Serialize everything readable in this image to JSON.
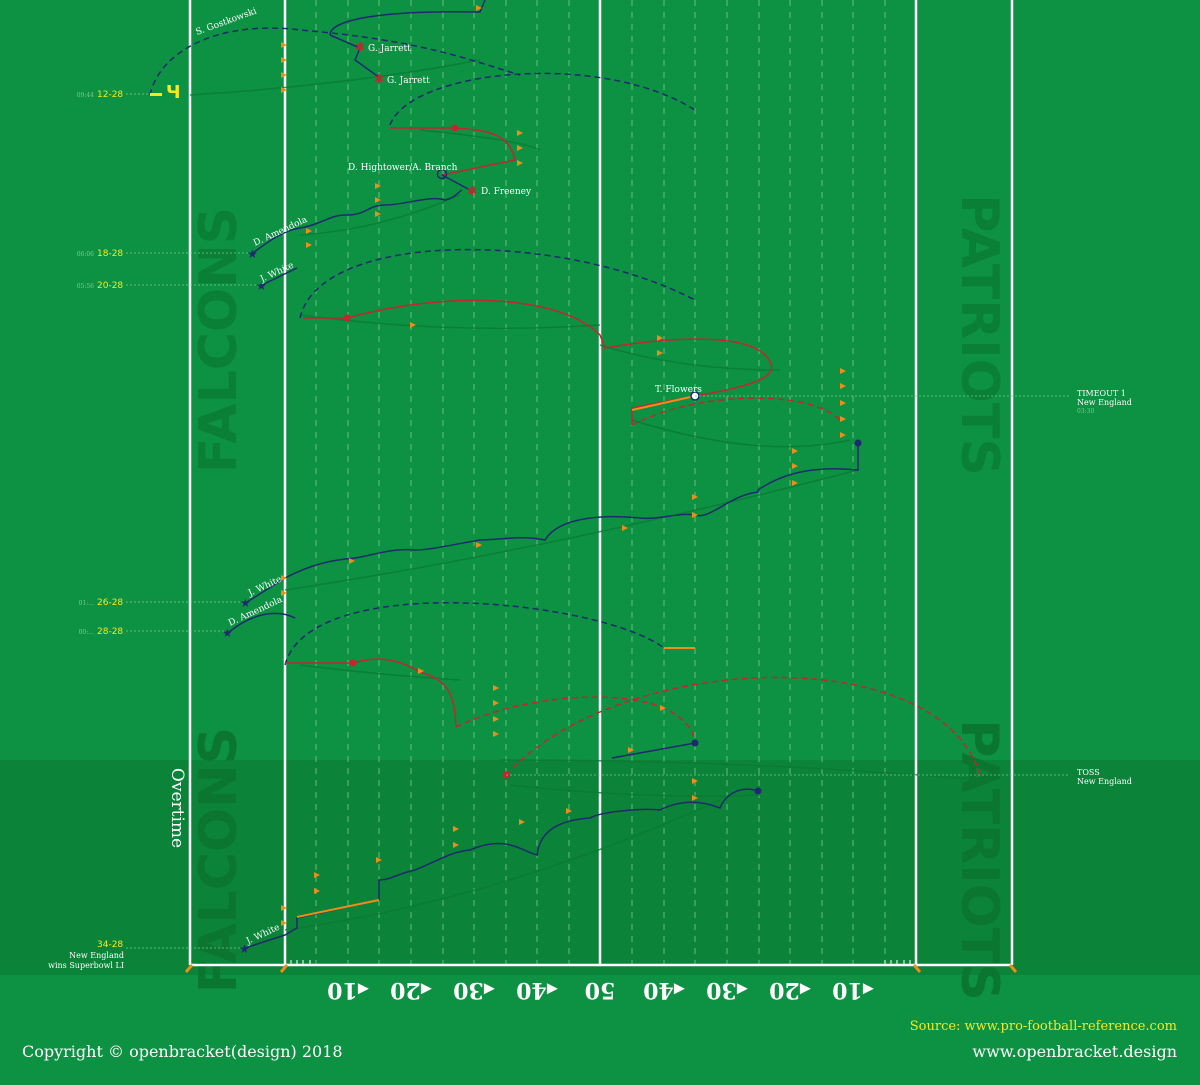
{
  "field": {
    "yard_labels": [
      "◂10",
      "◂20",
      "◂30",
      "◂40",
      "50",
      "◂40",
      "◂30",
      "◂20",
      "◂10"
    ],
    "endzone_left": "FALCONS",
    "endzone_right": "PATRIOTS",
    "overtime_label": "Overtime",
    "colors": {
      "grass": "#0d9142",
      "grass_dark": "#0b8338",
      "patriots": "#1f2a6e",
      "falcons": "#c4262e",
      "penalty": "#f08c1a",
      "score": "#f3ea1f",
      "lines": "#ffffff"
    }
  },
  "scores": [
    {
      "time": "09:44",
      "score": "12-28"
    },
    {
      "time": "06:06",
      "score": "18-28"
    },
    {
      "time": "05:56",
      "score": "20-28"
    },
    {
      "time": "01:...",
      "score": "26-28"
    },
    {
      "time": "00:...",
      "score": "28-28"
    },
    {
      "time": "",
      "score": "34-28",
      "note1": "New England",
      "note2": "wins Superbowl LI"
    }
  ],
  "players": {
    "gostkowski": "S. Gostkowski",
    "jarrett1": "G. Jarrett",
    "jarrett2": "G. Jarrett",
    "hightower": "D. Hightower/A. Branch",
    "freeney": "D. Freeney",
    "amendola1": "D. Amendola",
    "white1": "J. White",
    "flowers": "T. Flowers",
    "white2": "J. White",
    "amendola2": "D. Amendola",
    "white3": "J. White"
  },
  "events": {
    "timeout_title": "TIMEOUT 1",
    "timeout_team": "New England",
    "timeout_time": "03:30",
    "toss_title": "TOSS",
    "toss_team": "New England"
  },
  "footer": {
    "source": "Source: www.pro-football-reference.com",
    "copyright": "Copyright © openbracket(design) 2018",
    "site": "www.openbracket.design"
  }
}
